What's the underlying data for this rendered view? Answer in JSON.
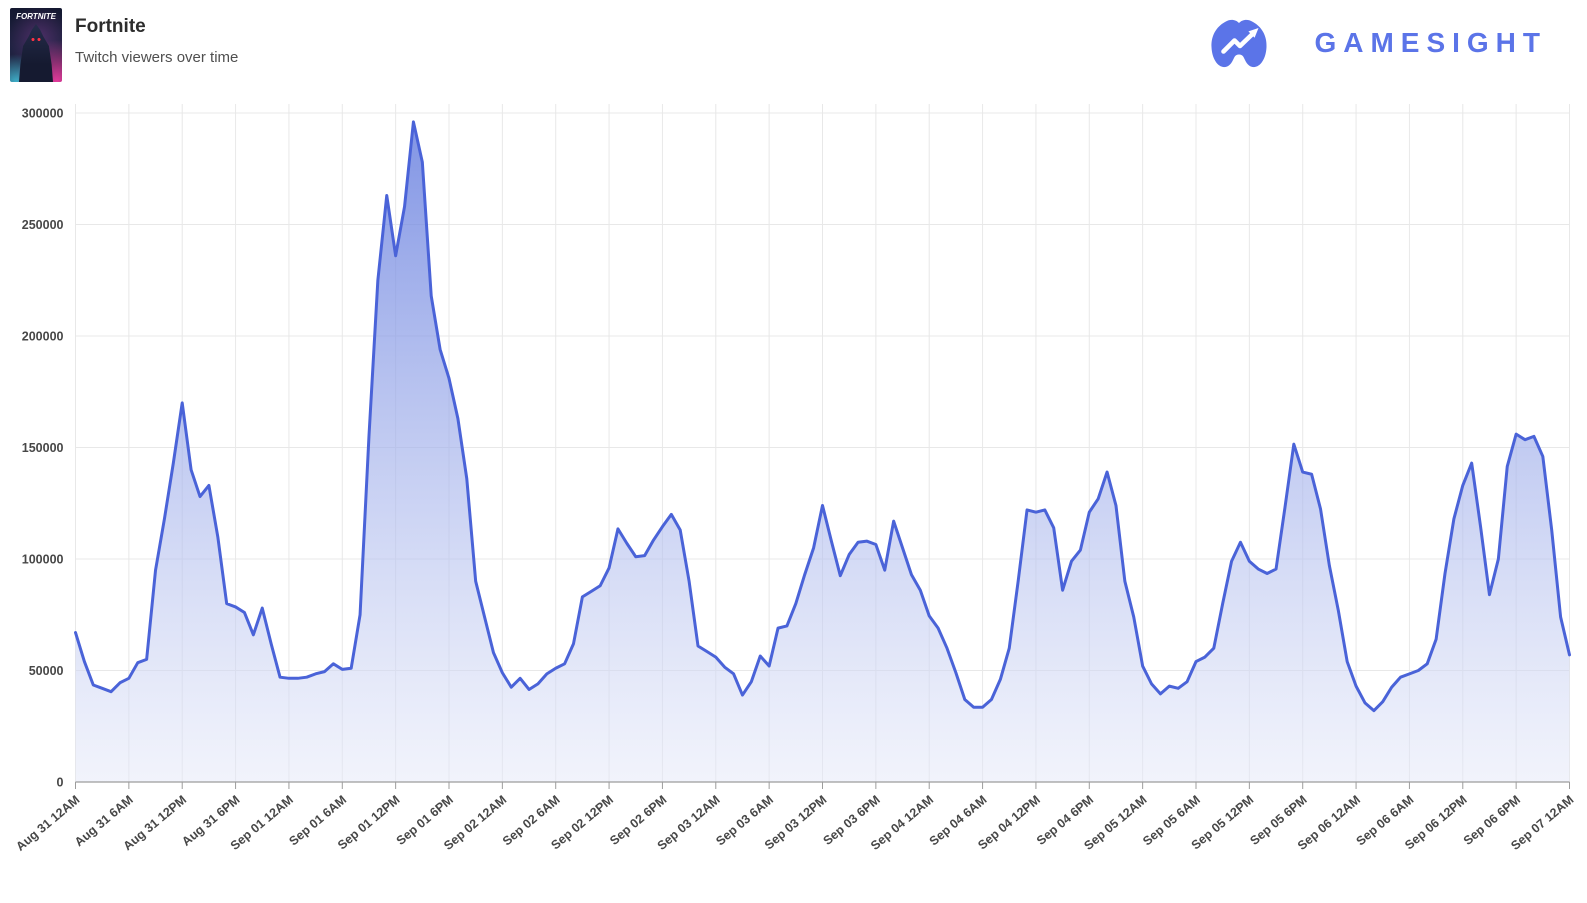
{
  "header": {
    "game_title": "Fortnite",
    "subtitle": "Twitch viewers over time",
    "box_art_text": "FORTNITE"
  },
  "brand": {
    "wordmark": "GAMESIGHT",
    "color": "#5b74e8"
  },
  "chart_data": {
    "type": "area",
    "title": "Fortnite Twitch viewers over time",
    "xlabel": "",
    "ylabel": "",
    "ylim": [
      0,
      300000
    ],
    "grid": true,
    "legend": "none",
    "interval_hours": 1,
    "x_start_label": "Aug 31 12AM",
    "x_end_label": "Sep 07 12AM",
    "x_tick_labels": [
      "Aug 31 12AM",
      "Aug 31 6AM",
      "Aug 31 12PM",
      "Aug 31 6PM",
      "Sep 01 12AM",
      "Sep 01 6AM",
      "Sep 01 12PM",
      "Sep 01 6PM",
      "Sep 02 12AM",
      "Sep 02 6AM",
      "Sep 02 12PM",
      "Sep 02 6PM",
      "Sep 03 12AM",
      "Sep 03 6AM",
      "Sep 03 12PM",
      "Sep 03 6PM",
      "Sep 04 12AM",
      "Sep 04 6AM",
      "Sep 04 12PM",
      "Sep 04 6PM",
      "Sep 05 12AM",
      "Sep 05 6AM",
      "Sep 05 12PM",
      "Sep 05 6PM",
      "Sep 06 12AM",
      "Sep 06 6AM",
      "Sep 06 12PM",
      "Sep 06 6PM",
      "Sep 07 12AM"
    ],
    "y_ticks": [
      0,
      50000,
      100000,
      150000,
      200000,
      250000,
      300000
    ],
    "series": [
      {
        "name": "Twitch viewers",
        "values": [
          67000,
          54000,
          43500,
          42000,
          40500,
          44500,
          46500,
          53500,
          55000,
          95000,
          118000,
          143000,
          170000,
          140000,
          128000,
          133000,
          110000,
          80000,
          78500,
          76000,
          66000,
          78000,
          62000,
          47000,
          46500,
          46500,
          47000,
          48500,
          49500,
          53000,
          50500,
          51000,
          75000,
          155000,
          225000,
          263000,
          236000,
          258000,
          296000,
          278000,
          218000,
          194000,
          181000,
          163000,
          136000,
          90000,
          74000,
          58000,
          49000,
          42500,
          46500,
          41500,
          44000,
          48500,
          51000,
          53000,
          62000,
          83000,
          85500,
          88000,
          96000,
          113500,
          107000,
          101000,
          101500,
          108500,
          114500,
          120000,
          113000,
          90000,
          61000,
          58500,
          56000,
          51500,
          48500,
          39000,
          45000,
          56500,
          52000,
          69000,
          70000,
          80000,
          93000,
          105000,
          124000,
          108000,
          92500,
          102000,
          107500,
          108000,
          106500,
          95000,
          117000,
          105000,
          93000,
          86000,
          74500,
          69000,
          60000,
          49000,
          37000,
          33500,
          33500,
          37000,
          46000,
          60000,
          90000,
          122000,
          121000,
          122000,
          114000,
          86000,
          99000,
          104000,
          121000,
          127000,
          139000,
          124000,
          90000,
          74000,
          52000,
          44000,
          39500,
          43000,
          42000,
          45000,
          54000,
          56000,
          60000,
          80000,
          99000,
          107500,
          99000,
          95500,
          93500,
          95500,
          123000,
          151500,
          139000,
          138000,
          122500,
          97000,
          77000,
          54000,
          43000,
          35500,
          32000,
          36000,
          42500,
          47000,
          48500,
          50000,
          53000,
          64000,
          93500,
          118000,
          133000,
          143000,
          114500,
          84000,
          100000,
          141500,
          156000,
          153500,
          155000,
          146000,
          113000,
          74000,
          57000
        ]
      }
    ],
    "colors": {
      "line": "#4a63d8",
      "fill_top": "#5e77dd",
      "fill_top_opacity": 0.8,
      "fill_bottom": "#e4e8f8",
      "fill_bottom_opacity": 0.5,
      "gridline": "#e8e8e8",
      "axis_line": "#9c9c9c",
      "tick_text": "#474747"
    }
  }
}
